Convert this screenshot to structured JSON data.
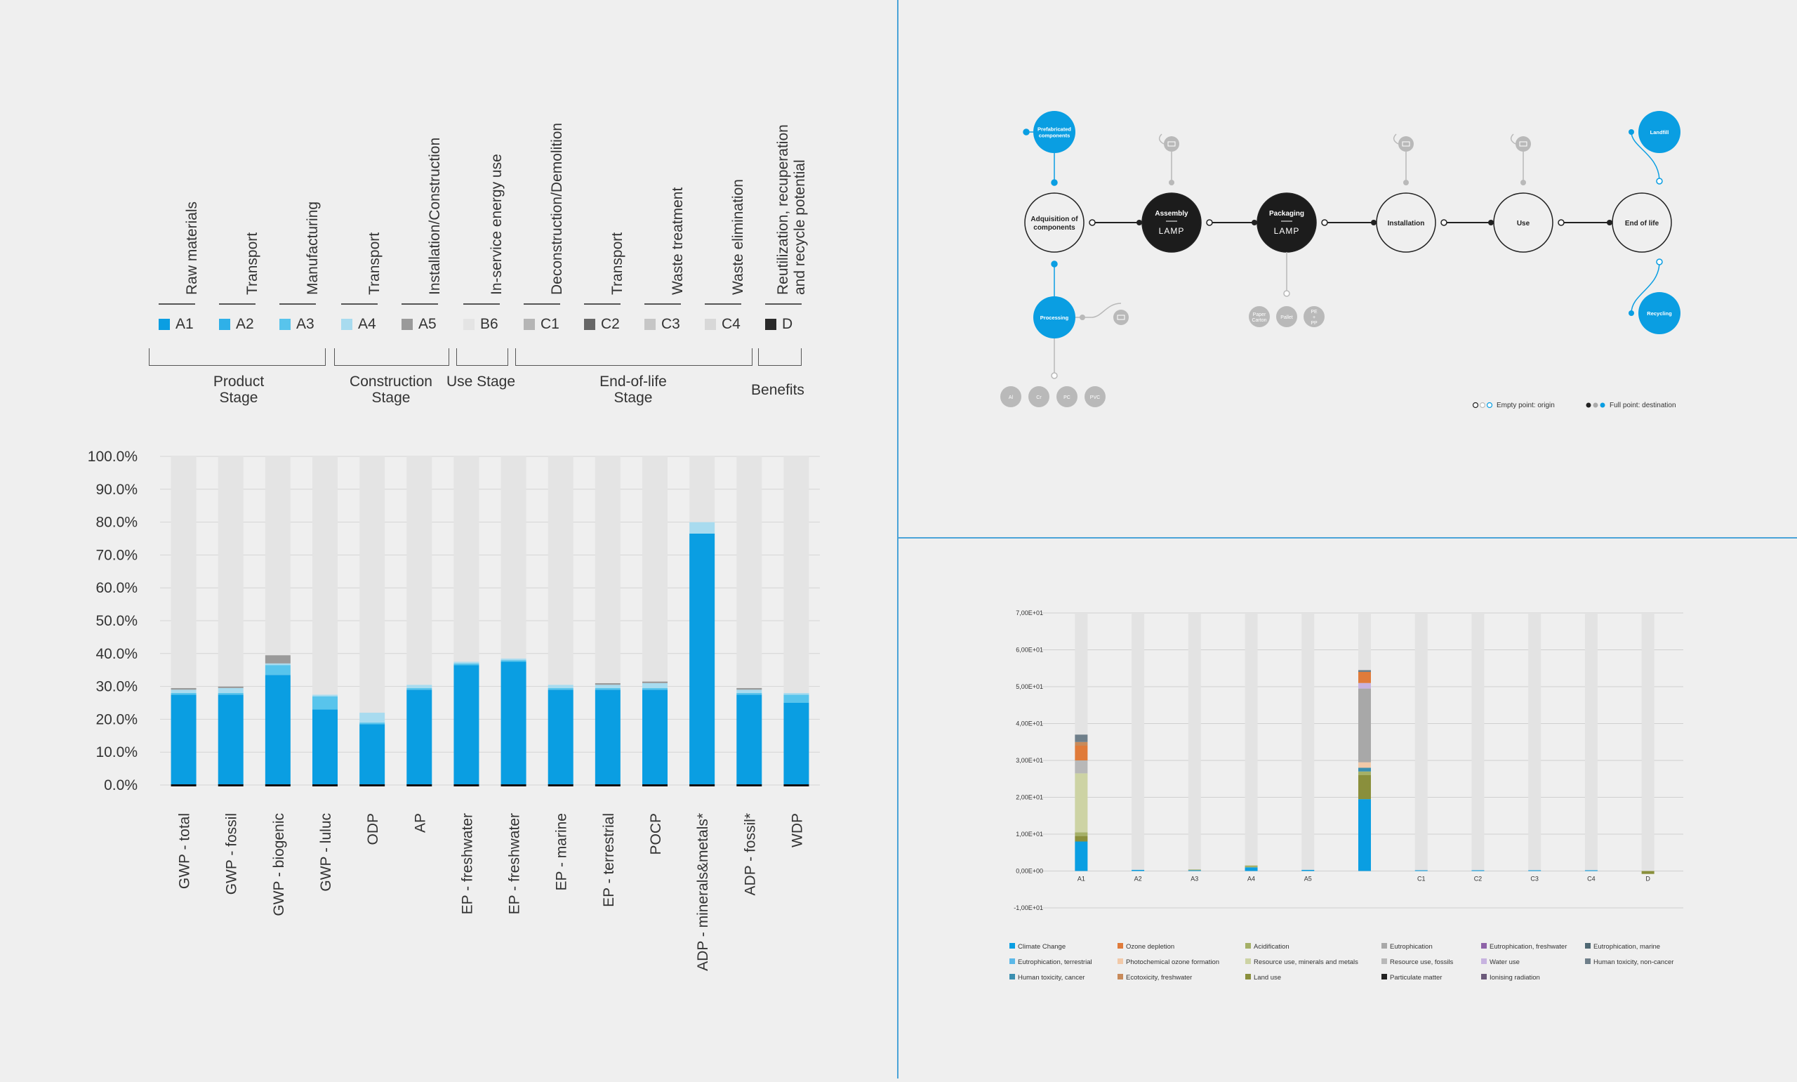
{
  "stage_header": {
    "columns": [
      {
        "label": "Raw materials",
        "code": "A1",
        "color": "#0a9ee2"
      },
      {
        "label": "Transport",
        "code": "A2",
        "color": "#2fb0e8"
      },
      {
        "label": "Manufacturing",
        "code": "A3",
        "color": "#58c4ec"
      },
      {
        "label": "Transport",
        "code": "A4",
        "color": "#a8dbef"
      },
      {
        "label": "Installation/Construction",
        "code": "A5",
        "color": "#9a9a9a"
      },
      {
        "label": "In-service energy use",
        "code": "B6",
        "color": "#e4e4e4"
      },
      {
        "label": "Deconstruction/Demolition",
        "code": "C1",
        "color": "#b5b5b5"
      },
      {
        "label": "Transport",
        "code": "C2",
        "color": "#666666"
      },
      {
        "label": "Waste treatment",
        "code": "C3",
        "color": "#c6c6c6"
      },
      {
        "label": "Waste elimination",
        "code": "C4",
        "color": "#d8d8d8"
      },
      {
        "label": "Reutilization, recuperation and recycle potential",
        "code": "D",
        "color": "#2a2a2a"
      }
    ],
    "stages": [
      {
        "label": "Product Stage"
      },
      {
        "label": "Construction Stage"
      },
      {
        "label": "Use Stage"
      },
      {
        "label": "End-of-life Stage"
      },
      {
        "label": "Benefits"
      }
    ]
  },
  "chart_data": [
    {
      "type": "bar",
      "stacked": true,
      "categories": [
        "GWP - total",
        "GWP - fossil",
        "GWP - biogenic",
        "GWP - luluc",
        "ODP",
        "AP",
        "EP - freshwater",
        "EP - freshwater",
        "EP - marine",
        "EP - terrestrial",
        "POCP",
        "ADP - minerals&metals*",
        "ADP - fossil*",
        "WDP"
      ],
      "yticks": [
        "100.0%",
        "90.0%",
        "80.0%",
        "70.0%",
        "60.0%",
        "50.0%",
        "40.0%",
        "30.0%",
        "20.0%",
        "10.0%",
        "0.0%"
      ],
      "ylim": [
        0,
        100
      ],
      "grid": true,
      "series": [
        {
          "name": "A1",
          "color": "#0a9ee2",
          "values": [
            27.5,
            27.5,
            33.5,
            23,
            18.5,
            29,
            36.5,
            37.5,
            29,
            29,
            29,
            76.5,
            27.5,
            25
          ]
        },
        {
          "name": "A3",
          "color": "#58c4ec",
          "values": [
            0.5,
            0.5,
            3,
            4,
            0.5,
            0.5,
            0.5,
            0.5,
            0.5,
            0.5,
            0.5,
            0,
            0.5,
            2.5
          ]
        },
        {
          "name": "A4",
          "color": "#a8dbef",
          "values": [
            1,
            1.5,
            0.5,
            0.5,
            3,
            1,
            0.5,
            0.5,
            1,
            1,
            1.5,
            3.5,
            1,
            0.5
          ]
        },
        {
          "name": "A5",
          "color": "#9a9a9a",
          "values": [
            0.5,
            0.5,
            2.5,
            0,
            0,
            0,
            0,
            0,
            0,
            0.5,
            0.5,
            0,
            0.5,
            0
          ]
        },
        {
          "name": "B6",
          "color": "#e4e4e4",
          "values": [
            70.5,
            70,
            60.5,
            72.5,
            78,
            69.5,
            62.5,
            61.5,
            69.5,
            69,
            68.5,
            20,
            70.5,
            72
          ]
        }
      ]
    },
    {
      "type": "bar",
      "stacked": true,
      "categories": [
        "A1",
        "A2",
        "A3",
        "A4",
        "A5",
        "",
        "C1",
        "C2",
        "C3",
        "C4",
        "D"
      ],
      "yticks": [
        "7,00E+01",
        "6,00E+01",
        "5,00E+01",
        "4,00E+01",
        "3,00E+01",
        "2,00E+01",
        "1,00E+01",
        "0,00E+00",
        "-1,00E+01"
      ],
      "ylim": [
        -10,
        70
      ],
      "grid": true,
      "background_value": 70,
      "legend": [
        {
          "name": "Climate Change",
          "color": "#0a9ee2"
        },
        {
          "name": "Ozone depletion",
          "color": "#e07b3a"
        },
        {
          "name": "Acidification",
          "color": "#a5b067"
        },
        {
          "name": "Eutrophication",
          "color": "#a8a8a8"
        },
        {
          "name": "Eutrophication, freshwater",
          "color": "#8e63a8"
        },
        {
          "name": "Eutrophication, marine",
          "color": "#4f6873"
        },
        {
          "name": "Eutrophication, terrestrial",
          "color": "#5bb8e8"
        },
        {
          "name": "Photochemical ozone formation",
          "color": "#f2c9a8"
        },
        {
          "name": "Resource use, minerals and metals",
          "color": "#cdd3a4"
        },
        {
          "name": "Resource use, fossils",
          "color": "#b8b8b8"
        },
        {
          "name": "Water use",
          "color": "#c7b3e0"
        },
        {
          "name": "Human toxicity, non-cancer",
          "color": "#6f7f8a"
        },
        {
          "name": "Human toxicity, cancer",
          "color": "#3b8fb0"
        },
        {
          "name": "Ecotoxicity, freshwater",
          "color": "#c88a5a"
        },
        {
          "name": "Land use",
          "color": "#8a8f3c"
        },
        {
          "name": "Particulate matter",
          "color": "#222222"
        },
        {
          "name": "Ionising radiation",
          "color": "#6b5a7a"
        }
      ],
      "stacks": [
        [
          [
            "Climate Change",
            8
          ],
          [
            "Land use",
            1.5
          ],
          [
            "Acidification",
            1
          ],
          [
            "Resource use, minerals and metals",
            16
          ],
          [
            "Resource use, fossils",
            3.5
          ],
          [
            "Ozone depletion",
            4
          ],
          [
            "Ecotoxicity, freshwater",
            1
          ],
          [
            "Human toxicity, non-cancer",
            2
          ]
        ],
        [
          [
            "Climate Change",
            0.3
          ]
        ],
        [
          [
            "Climate Change",
            0.2
          ],
          [
            "Acidification",
            0.2
          ]
        ],
        [
          [
            "Climate Change",
            1
          ],
          [
            "Acidification",
            0.5
          ]
        ],
        [
          [
            "Climate Change",
            0.3
          ]
        ],
        [
          [
            "Climate Change",
            19.5
          ],
          [
            "Land use",
            6.5
          ],
          [
            "Acidification",
            1
          ],
          [
            "Human toxicity, cancer",
            1
          ],
          [
            "Photochemical ozone formation",
            1.5
          ],
          [
            "Eutrophication",
            20
          ],
          [
            "Water use",
            1.5
          ],
          [
            "Ozone depletion",
            3
          ],
          [
            "Human toxicity, non-cancer",
            0.5
          ]
        ],
        [
          [
            "Climate Change",
            0.2
          ]
        ],
        [
          [
            "Climate Change",
            0.2
          ]
        ],
        [
          [
            "Climate Change",
            0.2
          ]
        ],
        [
          [
            "Climate Change",
            0.2
          ]
        ],
        [
          [
            "Land use",
            -0.8
          ]
        ]
      ]
    }
  ],
  "flow_diagram": {
    "nodes": [
      {
        "label": "Adquisition of components",
        "style": "outline"
      },
      {
        "label": "Assembly",
        "sub": "LAMP",
        "style": "dark"
      },
      {
        "label": "Packaging",
        "sub": "LAMP",
        "style": "dark"
      },
      {
        "label": "Installation",
        "style": "outline"
      },
      {
        "label": "Use",
        "style": "outline"
      },
      {
        "label": "End of life",
        "style": "outline"
      }
    ],
    "blue_nodes": [
      {
        "label": "Prefabricated components"
      },
      {
        "label": "Processing"
      },
      {
        "label": "Landfill"
      },
      {
        "label": "Recycling"
      }
    ],
    "materials_processing": [
      "Al",
      "Cr",
      "PC",
      "PVC"
    ],
    "materials_packaging": [
      "Paper Carton",
      "Pallet",
      "PE + PP"
    ],
    "legend": {
      "origin": "Empty point: origin",
      "destination": "Full point: destination"
    }
  }
}
